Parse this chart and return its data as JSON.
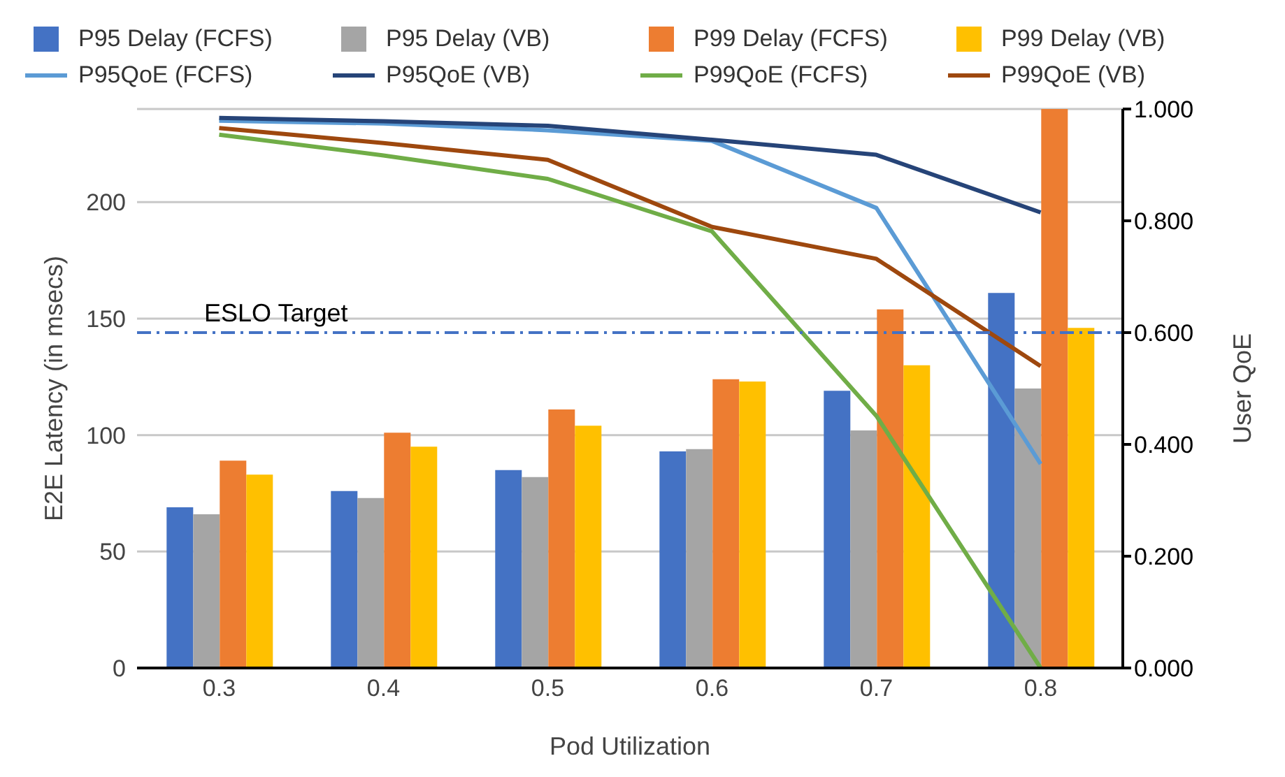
{
  "chart_data": {
    "type": "bar",
    "xlabel": "Pod Utilization",
    "ylabel": "E2E Latency (in msecs)",
    "y2label": "User QoE",
    "categories": [
      "0.3",
      "0.4",
      "0.5",
      "0.6",
      "0.7",
      "0.8"
    ],
    "series": [
      {
        "name": "P95 Delay (FCFS)",
        "color": "#4472c4",
        "values": [
          69,
          76,
          85,
          93,
          119,
          161
        ]
      },
      {
        "name": "P95 Delay (VB)",
        "color": "#a5a5a5",
        "values": [
          66,
          73,
          82,
          94,
          102,
          120
        ]
      },
      {
        "name": "P99 Delay (FCFS)",
        "color": "#ed7d31",
        "values": [
          89,
          101,
          111,
          124,
          154,
          240
        ]
      },
      {
        "name": "P99 Delay (VB)",
        "color": "#ffc000",
        "values": [
          83,
          95,
          104,
          123,
          130,
          146
        ]
      },
      {
        "name": "P95QoE (FCFS)",
        "type": "line",
        "axis": "y2",
        "color": "#5b9bd5",
        "values": [
          0.979,
          0.974,
          0.962,
          0.943,
          0.823,
          0.365
        ]
      },
      {
        "name": "P95QoE (VB)",
        "type": "line",
        "axis": "y2",
        "color": "#264478",
        "values": [
          0.984,
          0.978,
          0.97,
          0.945,
          0.918,
          0.815
        ]
      },
      {
        "name": "P99QoE (FCFS)",
        "type": "line",
        "axis": "y2",
        "color": "#70ad47",
        "values": [
          0.954,
          0.917,
          0.875,
          0.781,
          0.451,
          0
        ]
      },
      {
        "name": "P99QoE (VB)",
        "type": "line",
        "axis": "y2",
        "color": "#9e480e",
        "values": [
          0.966,
          0.939,
          0.909,
          0.789,
          0.732,
          0.54
        ]
      }
    ],
    "ylim": [
      0,
      240
    ],
    "yticks": [
      0,
      50,
      100,
      150,
      200
    ],
    "y2lim": [
      0,
      1
    ],
    "y2ticks": [
      {
        "value": 0,
        "label": "0.000"
      },
      {
        "value": 0.2,
        "label": "0.200"
      },
      {
        "value": 0.4,
        "label": "0.400"
      },
      {
        "value": 0.6,
        "label": "0.600"
      },
      {
        "value": 0.8,
        "label": "0.800"
      },
      {
        "value": 1,
        "label": "1.000"
      }
    ],
    "ref_lines": [
      {
        "axis": "y",
        "value": 144,
        "label": "ESLO Target",
        "color": "#4472c4",
        "line_style": "dashed"
      }
    ],
    "grid": "y",
    "legend": "top",
    "marker": "none",
    "line_style": "solid"
  }
}
